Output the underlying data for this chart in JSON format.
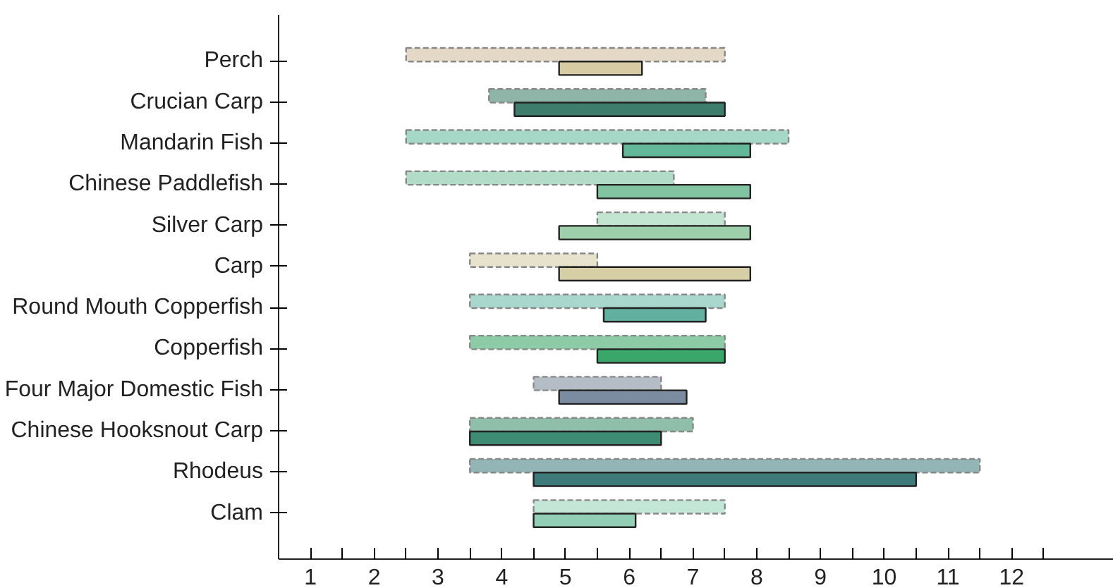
{
  "chart_data": {
    "type": "bar",
    "orientation": "horizontal",
    "grid": false,
    "categories": [
      "Perch",
      "Crucian Carp",
      "Mandarin Fish",
      "Chinese Paddlefish",
      "Silver Carp",
      "Carp",
      "Round Mouth Copperfish",
      "Copperfish",
      "Four Major Domestic Fish",
      "Chinese Hooksnout Carp",
      "Rhodeus",
      "Clam"
    ],
    "series": [
      {
        "line_style": "dashed",
        "colors": [
          "#e3d9c6",
          "#8fb5a8",
          "#a6d8c8",
          "#b2dbc8",
          "#c4e4d2",
          "#e6e2cc",
          "#a9d7cd",
          "#8dcba6",
          "#b4bcc6",
          "#8fbfaa",
          "#93b5b5",
          "#c4e6d6"
        ],
        "base": [
          2.0,
          3.3,
          2.0,
          2.0,
          5.0,
          3.0,
          3.0,
          3.0,
          4.0,
          3.0,
          3.0,
          4.0
        ],
        "values": [
          5.0,
          3.4,
          6.0,
          4.2,
          2.0,
          2.0,
          4.0,
          4.0,
          2.0,
          3.5,
          8.0,
          3.0
        ]
      },
      {
        "line_style": "solid",
        "colors": [
          "#d6cba3",
          "#3e7c6c",
          "#62b898",
          "#82c4a2",
          "#9dcfab",
          "#d6cfa6",
          "#62b0a0",
          "#3aa66a",
          "#7c8ca0",
          "#3e8b74",
          "#3f7a7a",
          "#92cdb6"
        ],
        "base": [
          4.4,
          3.7,
          5.4,
          5.0,
          4.4,
          4.4,
          5.1,
          5.0,
          4.4,
          3.0,
          4.0,
          4.0
        ],
        "values": [
          1.3,
          3.3,
          2.0,
          2.4,
          3.0,
          3.0,
          1.6,
          2.0,
          2.0,
          3.0,
          6.0,
          1.6
        ]
      }
    ],
    "xlim": [
      0,
      13.1
    ],
    "xticks": [
      {
        "value": 0,
        "label": null
      },
      {
        "value": 0.5,
        "label": "1"
      },
      {
        "value": 1,
        "label": null
      },
      {
        "value": 1.5,
        "label": "2"
      },
      {
        "value": 2,
        "label": null
      },
      {
        "value": 2.5,
        "label": "3"
      },
      {
        "value": 3,
        "label": null
      },
      {
        "value": 3.5,
        "label": "4"
      },
      {
        "value": 4,
        "label": null
      },
      {
        "value": 4.5,
        "label": "5"
      },
      {
        "value": 5,
        "label": null
      },
      {
        "value": 5.5,
        "label": "6"
      },
      {
        "value": 6,
        "label": null
      },
      {
        "value": 6.5,
        "label": "7"
      },
      {
        "value": 7,
        "label": null
      },
      {
        "value": 7.5,
        "label": "8"
      },
      {
        "value": 8,
        "label": null
      },
      {
        "value": 8.5,
        "label": "9"
      },
      {
        "value": 9,
        "label": null
      },
      {
        "value": 9.5,
        "label": "10"
      },
      {
        "value": 10,
        "label": null
      },
      {
        "value": 10.5,
        "label": "11"
      },
      {
        "value": 11,
        "label": null
      },
      {
        "value": 11.5,
        "label": "12"
      },
      {
        "value": 12,
        "label": null
      }
    ]
  }
}
